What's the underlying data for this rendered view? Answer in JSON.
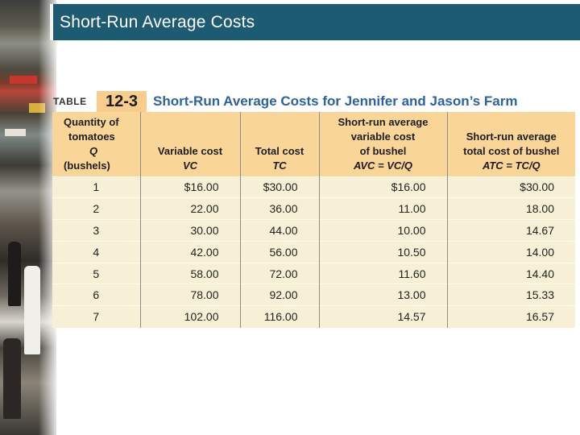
{
  "slide": {
    "title": "Short-Run Average Costs"
  },
  "table": {
    "label": "TABLE",
    "number": "12-3",
    "caption": "Short-Run Average Costs for Jennifer and Jason’s Farm",
    "headers": [
      {
        "lines": [
          "Quantity of",
          "tomatoes"
        ],
        "symbol": "Q",
        "unit": "(bushels)"
      },
      {
        "lines": [
          "Variable cost"
        ],
        "symbol": "VC",
        "unit": ""
      },
      {
        "lines": [
          "Total cost"
        ],
        "symbol": "TC",
        "unit": ""
      },
      {
        "lines": [
          "Short-run average",
          "variable cost",
          "of bushel"
        ],
        "symbol": "AVC = VC/Q",
        "unit": ""
      },
      {
        "lines": [
          "Short-run average",
          "total cost of bushel"
        ],
        "symbol": "ATC = TC/Q",
        "unit": ""
      }
    ],
    "rows": [
      [
        "1",
        "$16.00",
        "$30.00",
        "$16.00",
        "$30.00"
      ],
      [
        "2",
        "22.00",
        "36.00",
        "11.00",
        "18.00"
      ],
      [
        "3",
        "30.00",
        "44.00",
        "10.00",
        "14.67"
      ],
      [
        "4",
        "42.00",
        "56.00",
        "10.50",
        "14.00"
      ],
      [
        "5",
        "58.00",
        "72.00",
        "11.60",
        "14.40"
      ],
      [
        "6",
        "78.00",
        "92.00",
        "13.00",
        "15.33"
      ],
      [
        "7",
        "102.00",
        "116.00",
        "14.57",
        "16.57"
      ]
    ]
  },
  "colors": {
    "title_bar": "#1d5b73",
    "header_fill": "#f9d598",
    "body_fill": "#f8f0d6",
    "caption_text": "#2c62a1",
    "table_number_fill": "#f6cd8c"
  }
}
